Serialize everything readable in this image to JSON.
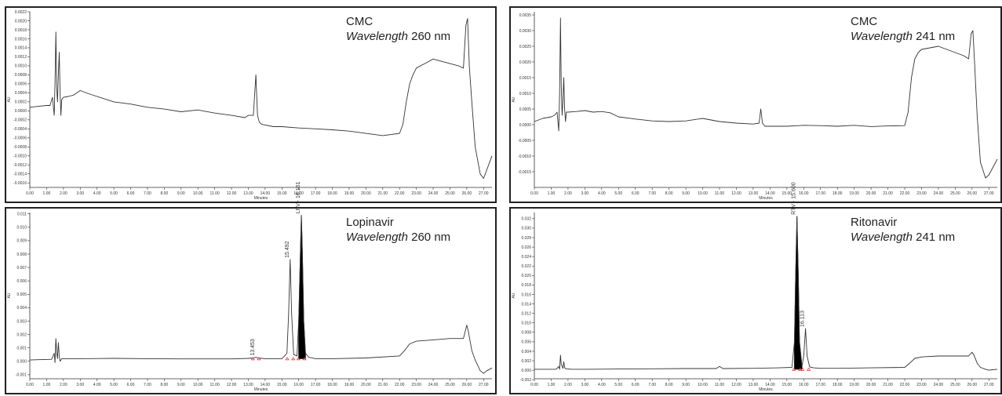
{
  "chart_data": [
    {
      "type": "line",
      "title": "CMC",
      "wavelength_label": "Wavelength",
      "wavelength_value": "260 nm",
      "xlabel": "Minutes",
      "ylabel": "AU",
      "xlim": [
        0,
        27.5
      ],
      "ylim": [
        -0.0017,
        0.0022
      ],
      "xticks": [
        "0.00",
        "1.00",
        "2.00",
        "3.00",
        "4.00",
        "5.00",
        "6.00",
        "7.00",
        "8.00",
        "9.00",
        "10.00",
        "11.00",
        "12.00",
        "13.00",
        "14.00",
        "15.00",
        "16.00",
        "17.00",
        "18.00",
        "19.00",
        "20.00",
        "21.00",
        "22.00",
        "23.00",
        "24.00",
        "25.00",
        "26.00",
        "27.00"
      ],
      "yticks": [
        "0.0022",
        "0.0020",
        "0.0018",
        "0.0016",
        "0.0014",
        "0.0012",
        "0.0010",
        "0.0008",
        "0.0006",
        "0.0004",
        "0.0002",
        "0.0000",
        "-0.0002",
        "-0.0004",
        "-0.0006",
        "-0.0008",
        "-0.0010",
        "-0.0012",
        "-0.0014",
        "-0.0016"
      ],
      "grid": false,
      "series": [
        {
          "x": [
            0,
            0.5,
            1.0,
            1.2,
            1.35,
            1.45,
            1.5,
            1.55,
            1.6,
            1.65,
            1.7,
            1.75,
            1.8,
            1.85,
            1.9,
            2.0,
            2.3,
            2.6,
            3.0,
            3.5,
            4.0,
            5.0,
            6.0,
            7.0,
            8.0,
            9.0,
            10.0,
            11.0,
            12.0,
            12.8,
            13.0,
            13.3,
            13.45,
            13.55,
            13.65,
            13.8,
            14.5,
            15.0,
            16.0,
            17.0,
            18.0,
            19.0,
            20.0,
            21.0,
            22.0,
            22.2,
            22.4,
            22.6,
            22.8,
            23.0,
            23.5,
            24.0,
            24.5,
            25.0,
            25.5,
            25.8,
            25.95,
            26.05,
            26.15,
            26.3,
            26.5,
            26.8,
            27.0,
            27.2,
            27.5
          ],
          "values": [
            8e-05,
            0.0001,
            0.00012,
            0.00012,
            0.0003,
            -0.0001,
            0.0006,
            0.00175,
            0.0005,
            0.0002,
            0.0008,
            0.0013,
            0.0004,
            -0.0001,
            0.00025,
            0.0003,
            0.00032,
            0.00035,
            0.00045,
            0.00038,
            0.00032,
            0.0002,
            0.00015,
            8e-05,
            4e-05,
            -2e-05,
            2e-05,
            -5e-05,
            -0.0001,
            -0.00015,
            -0.0001,
            -0.0001,
            0.0008,
            -0.0001,
            -0.00025,
            -0.0003,
            -0.00035,
            -0.00035,
            -0.00038,
            -0.0004,
            -0.00042,
            -0.00045,
            -0.0005,
            -0.00055,
            -0.0005,
            -0.0003,
            0.0002,
            0.0006,
            0.0008,
            0.00095,
            0.00105,
            0.00115,
            0.0011,
            0.00105,
            0.001,
            0.00095,
            0.0019,
            0.00205,
            0.001,
            0.0002,
            -0.0008,
            -0.0014,
            -0.0015,
            -0.0013,
            -0.001
          ]
        }
      ]
    },
    {
      "type": "line",
      "title": "CMC",
      "wavelength_label": "Wavelength",
      "wavelength_value": "241 nm",
      "xlabel": "Minutes",
      "ylabel": "AU",
      "xlim": [
        0,
        27.5
      ],
      "ylim": [
        -0.002,
        0.0036
      ],
      "xticks": [
        "0.00",
        "1.00",
        "2.00",
        "3.00",
        "4.00",
        "5.00",
        "6.00",
        "7.00",
        "8.00",
        "9.00",
        "10.00",
        "11.00",
        "12.00",
        "13.00",
        "14.00",
        "15.00",
        "16.00",
        "17.00",
        "18.00",
        "19.00",
        "20.00",
        "21.00",
        "22.00",
        "23.00",
        "24.00",
        "25.00",
        "26.00",
        "27.00"
      ],
      "yticks": [
        "0.0035",
        "0.0030",
        "0.0025",
        "0.0020",
        "0.0015",
        "0.0010",
        "0.0005",
        "0.0000",
        "-0.0005",
        "-0.0010",
        "-0.0015"
      ],
      "grid": false,
      "series": [
        {
          "x": [
            0,
            0.5,
            1.0,
            1.2,
            1.35,
            1.45,
            1.5,
            1.55,
            1.6,
            1.65,
            1.7,
            1.75,
            1.8,
            1.85,
            1.9,
            2.0,
            2.5,
            3.0,
            3.5,
            4.0,
            4.5,
            5.0,
            6.0,
            7.0,
            8.0,
            9.0,
            10.0,
            11.0,
            12.0,
            13.0,
            13.35,
            13.45,
            13.55,
            13.7,
            14.5,
            15.0,
            16.0,
            17.0,
            18.0,
            19.0,
            20.0,
            21.0,
            22.0,
            22.2,
            22.4,
            22.6,
            22.8,
            23.0,
            23.5,
            24.0,
            24.5,
            25.0,
            25.5,
            25.8,
            25.95,
            26.05,
            26.15,
            26.3,
            26.5,
            26.8,
            27.0,
            27.2,
            27.5
          ],
          "values": [
            0.0001,
            0.0002,
            0.00025,
            0.0003,
            0.0004,
            -0.0002,
            0.001,
            0.0034,
            0.0012,
            0.0003,
            0.0008,
            0.0015,
            0.0005,
            0.0001,
            0.0004,
            0.0004,
            0.00042,
            0.00045,
            0.0004,
            0.00042,
            0.00038,
            0.00025,
            0.00018,
            0.00012,
            0.0001,
            0.00012,
            0.0002,
            0.0001,
            5e-05,
            2e-05,
            5e-05,
            0.0005,
            5e-05,
            -5e-05,
            -5e-05,
            -5e-05,
            -2e-05,
            -3e-05,
            -5e-05,
            -2e-05,
            -6e-05,
            -4e-05,
            -3e-05,
            0.0004,
            0.0015,
            0.0021,
            0.0023,
            0.0024,
            0.00245,
            0.0025,
            0.0024,
            0.0023,
            0.0022,
            0.0021,
            0.0029,
            0.003,
            0.002,
            0.0003,
            -0.0012,
            -0.0017,
            -0.0016,
            -0.0014,
            -0.0011
          ]
        }
      ]
    },
    {
      "type": "line",
      "title": "Lopinavir",
      "wavelength_label": "Wavelength",
      "wavelength_value": "260 nm",
      "xlabel": "Minutes",
      "ylabel": "AU",
      "xlim": [
        0,
        27.5
      ],
      "ylim": [
        -0.0013,
        0.0111
      ],
      "xticks": [
        "0.00",
        "1.00",
        "2.00",
        "3.00",
        "4.00",
        "5.00",
        "6.00",
        "7.00",
        "8.00",
        "9.00",
        "10.00",
        "11.00",
        "12.00",
        "13.00",
        "14.00",
        "15.00",
        "16.00",
        "17.00",
        "18.00",
        "19.00",
        "20.00",
        "21.00",
        "22.00",
        "23.00",
        "24.00",
        "25.00",
        "26.00",
        "27.00"
      ],
      "yticks": [
        "0.011",
        "0.010",
        "0.009",
        "0.008",
        "0.007",
        "0.006",
        "0.005",
        "0.004",
        "0.003",
        "0.002",
        "0.001",
        "0.000",
        "-0.001"
      ],
      "grid": false,
      "peak_labels": [
        {
          "x": 13.453,
          "y": 0.0003,
          "label": "13.453"
        },
        {
          "x": 15.492,
          "y": 0.0076,
          "label": "15.492"
        },
        {
          "x": 16.16,
          "y": 0.0109,
          "label": "LPV - 16.161"
        }
      ],
      "filled_peak": {
        "x0": 15.95,
        "x1": 16.45
      },
      "series": [
        {
          "x": [
            0,
            0.5,
            1.0,
            1.3,
            1.45,
            1.5,
            1.55,
            1.6,
            1.65,
            1.7,
            1.75,
            1.8,
            1.9,
            2.2,
            3.0,
            5.0,
            7.0,
            9.0,
            11.0,
            12.0,
            13.0,
            13.3,
            13.45,
            13.6,
            14.0,
            15.0,
            15.3,
            15.4,
            15.49,
            15.58,
            15.7,
            15.9,
            16.0,
            16.1,
            16.16,
            16.22,
            16.3,
            16.4,
            16.6,
            17.0,
            18.0,
            20.0,
            22.0,
            22.3,
            22.6,
            23.0,
            24.0,
            25.0,
            25.8,
            26.0,
            26.1,
            26.3,
            26.5,
            26.8,
            27.0,
            27.2,
            27.5
          ],
          "values": [
            0.0001,
            0.00012,
            0.00014,
            0.00015,
            0.0006,
            -0.0001,
            0.0017,
            0.0006,
            0.0002,
            0.0014,
            0.0004,
            0.0,
            0.0002,
            0.0002,
            0.0002,
            0.00022,
            0.0002,
            0.00018,
            0.00018,
            0.00018,
            0.00022,
            0.00025,
            0.0003,
            0.00025,
            0.0002,
            0.0002,
            0.0006,
            0.0035,
            0.0076,
            0.0035,
            0.0005,
            0.0004,
            0.003,
            0.008,
            0.0109,
            0.008,
            0.003,
            0.0006,
            0.0003,
            0.0002,
            0.0002,
            0.00025,
            0.0004,
            0.0008,
            0.0013,
            0.0015,
            0.0016,
            0.0017,
            0.0017,
            0.0027,
            0.0022,
            0.0008,
            0.0001,
            -0.0007,
            -0.0009,
            -0.0007,
            -0.0005
          ]
        }
      ]
    },
    {
      "type": "line",
      "title": "Ritonavir",
      "wavelength_label": "Wavelength",
      "wavelength_value": "241 nm",
      "xlabel": "Minutes",
      "ylabel": "AU",
      "xlim": [
        0,
        27.5
      ],
      "ylim": [
        -0.0018,
        0.0333
      ],
      "xticks": [
        "0.00",
        "1.00",
        "2.00",
        "3.00",
        "4.00",
        "5.00",
        "6.00",
        "7.00",
        "8.00",
        "9.00",
        "10.00",
        "11.00",
        "12.00",
        "13.00",
        "14.00",
        "15.00",
        "16.00",
        "17.00",
        "18.00",
        "19.00",
        "20.00",
        "21.00",
        "22.00",
        "23.00",
        "24.00",
        "25.00",
        "26.00",
        "27.00"
      ],
      "yticks": [
        "0.032",
        "0.030",
        "0.028",
        "0.026",
        "0.024",
        "0.022",
        "0.020",
        "0.018",
        "0.016",
        "0.014",
        "0.012",
        "0.010",
        "0.008",
        "0.006",
        "0.004",
        "0.002",
        "0.000",
        "-0.002"
      ],
      "grid": false,
      "peak_labels": [
        {
          "x": 15.6,
          "y": 0.0325,
          "label": "RTV - 15.600"
        },
        {
          "x": 16.113,
          "y": 0.0088,
          "label": "16.113"
        }
      ],
      "filled_peak": {
        "x0": 15.45,
        "x1": 15.9
      },
      "series": [
        {
          "x": [
            0,
            0.5,
            1.0,
            1.3,
            1.45,
            1.5,
            1.55,
            1.6,
            1.7,
            1.75,
            1.8,
            1.9,
            2.2,
            3.0,
            5.0,
            7.0,
            9.0,
            10.8,
            11.0,
            11.2,
            13.0,
            14.5,
            15.3,
            15.45,
            15.52,
            15.6,
            15.68,
            15.75,
            15.9,
            16.0,
            16.11,
            16.2,
            16.35,
            16.6,
            17.0,
            18.0,
            20.0,
            22.0,
            22.3,
            22.6,
            23.0,
            24.0,
            25.0,
            25.8,
            26.0,
            26.1,
            26.3,
            26.5,
            26.8,
            27.0,
            27.2,
            27.5
          ],
          "values": [
            0.0002,
            0.0002,
            0.0002,
            0.0002,
            0.0008,
            0.0002,
            0.0032,
            0.0012,
            0.0004,
            0.0018,
            0.0005,
            0.0003,
            0.0002,
            0.0002,
            0.00025,
            0.0003,
            0.00035,
            0.00035,
            0.0008,
            0.00035,
            0.0004,
            0.0005,
            0.0006,
            0.006,
            0.02,
            0.0325,
            0.02,
            0.006,
            0.0008,
            0.003,
            0.0088,
            0.003,
            0.0007,
            0.0005,
            0.0004,
            0.0004,
            0.0005,
            0.0006,
            0.0015,
            0.0025,
            0.0028,
            0.003,
            0.003,
            0.003,
            0.0038,
            0.0033,
            0.0015,
            0.0006,
            0.0002,
            0.0,
            0.0001,
            0.0002
          ]
        }
      ]
    }
  ]
}
